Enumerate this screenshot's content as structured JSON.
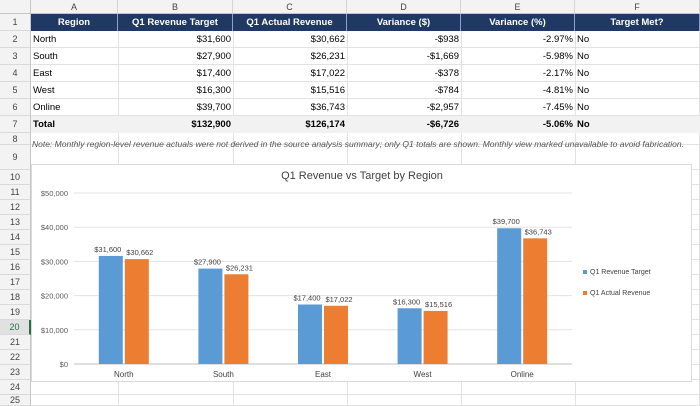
{
  "columns": [
    "A",
    "B",
    "C",
    "D",
    "E",
    "F"
  ],
  "rows": [
    "1",
    "2",
    "3",
    "4",
    "5",
    "6",
    "7",
    "8",
    "9",
    "10",
    "11",
    "12",
    "13",
    "14",
    "15",
    "16",
    "17",
    "18",
    "19",
    "20",
    "21",
    "22",
    "23",
    "24",
    "25"
  ],
  "selected_row": "20",
  "table": {
    "headers": [
      "Region",
      "Q1 Revenue Target",
      "Q1 Actual Revenue",
      "Variance ($)",
      "Variance (%)",
      "Target Met?"
    ],
    "rows": [
      [
        "North",
        "$31,600",
        "$30,662",
        "-$938",
        "-2.97%",
        "No"
      ],
      [
        "South",
        "$27,900",
        "$26,231",
        "-$1,669",
        "-5.98%",
        "No"
      ],
      [
        "East",
        "$17,400",
        "$17,022",
        "-$378",
        "-2.17%",
        "No"
      ],
      [
        "West",
        "$16,300",
        "$15,516",
        "-$784",
        "-4.81%",
        "No"
      ],
      [
        "Online",
        "$39,700",
        "$36,743",
        "-$2,957",
        "-7.45%",
        "No"
      ]
    ],
    "total": [
      "Total",
      "$132,900",
      "$126,174",
      "-$6,726",
      "-5.06%",
      "No"
    ]
  },
  "note": "Note: Monthly region-level revenue actuals were not derived in the source analysis summary; only Q1 totals are shown. Monthly view marked unavailable to avoid fabrication.",
  "colors": {
    "header_bg": "#1f3864",
    "target": "#5b9bd5",
    "actual": "#ed7d31",
    "selected": "#217346"
  },
  "chart_data": {
    "type": "bar",
    "title": "Q1 Revenue vs Target by Region",
    "categories": [
      "North",
      "South",
      "East",
      "West",
      "Online"
    ],
    "series": [
      {
        "name": "Q1 Revenue Target",
        "values": [
          31600,
          27900,
          17400,
          16300,
          39700
        ],
        "labels": [
          "$31,600",
          "$27,900",
          "$17,400",
          "$16,300",
          "$39,700"
        ]
      },
      {
        "name": "Q1 Actual Revenue",
        "values": [
          30662,
          26231,
          17022,
          15516,
          36743
        ],
        "labels": [
          "$30,662",
          "$26,231",
          "$17,022",
          "$15,516",
          "$36,743"
        ]
      }
    ],
    "ylim": [
      0,
      50000
    ],
    "yticks": [
      "$0",
      "$10,000",
      "$20,000",
      "$30,000",
      "$40,000",
      "$50,000"
    ],
    "ytick_values": [
      0,
      10000,
      20000,
      30000,
      40000,
      50000
    ],
    "grid": true,
    "legend": "right"
  }
}
